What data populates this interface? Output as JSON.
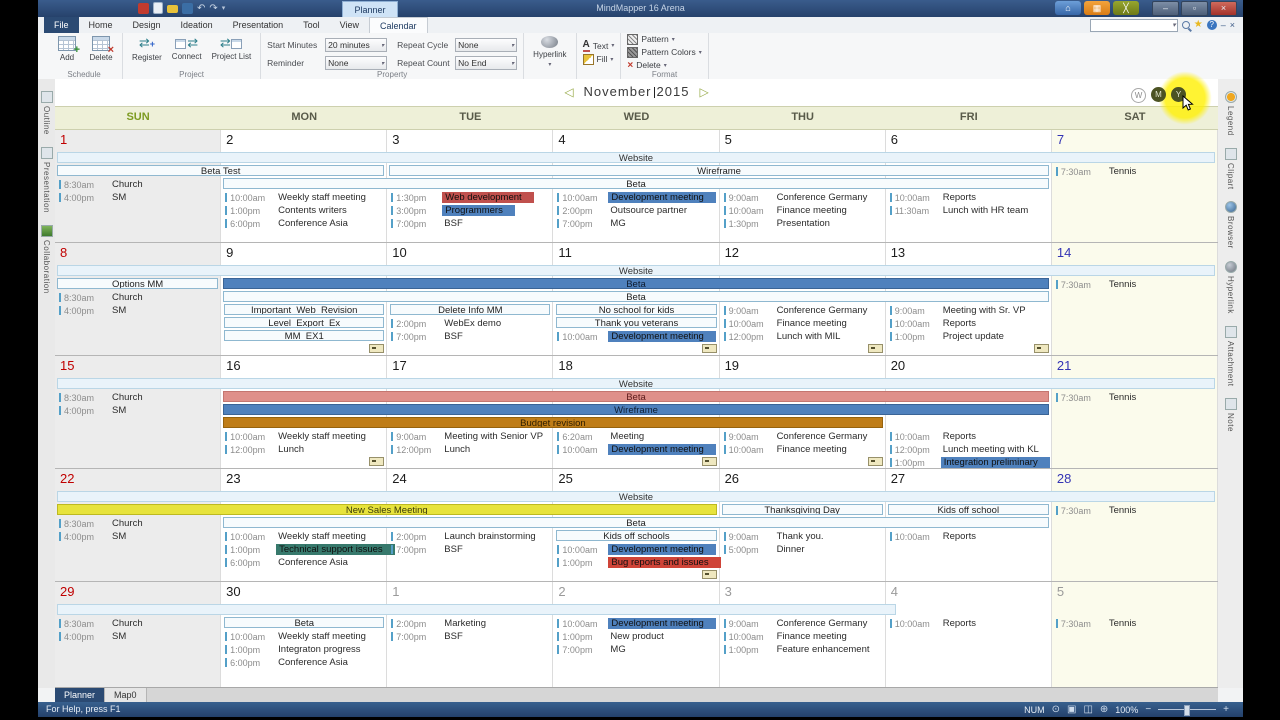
{
  "titlebar": {
    "title": "MindMapper 16 Arena",
    "context_tab": "Planner"
  },
  "ribbon": {
    "tabs": [
      "File",
      "Home",
      "Design",
      "Ideation",
      "Presentation",
      "Tool",
      "View",
      "Calendar"
    ],
    "active_tab": "Calendar",
    "schedule": {
      "label": "Schedule",
      "add": "Add",
      "delete": "Delete"
    },
    "project": {
      "label": "Project",
      "register": "Register",
      "connect": "Connect",
      "project_list": "Project List"
    },
    "property": {
      "label": "Property",
      "fields": [
        {
          "label": "Start Minutes",
          "value": "20 minutes"
        },
        {
          "label": "Reminder",
          "value": "None"
        },
        {
          "label": "Repeat Cycle",
          "value": "None"
        },
        {
          "label": "Repeat Count",
          "value": "No End"
        }
      ]
    },
    "hyperlink_label": "Hyperlink",
    "text_label": "Text",
    "fill_label": "Fill",
    "format": {
      "label": "Format",
      "pattern": "Pattern",
      "pattern_colors": "Pattern Colors",
      "delete": "Delete"
    }
  },
  "side_tabs": {
    "left": [
      "Outline",
      "Presentation",
      "Collaboration"
    ],
    "right": [
      "Legend",
      "Clipart",
      "Browser",
      "Hyperlink",
      "Attachment",
      "Note"
    ]
  },
  "calendar": {
    "month": "November",
    "year": "2015",
    "view_buttons": [
      "W",
      "M",
      "Y"
    ],
    "day_headers": [
      "SUN",
      "MON",
      "TUE",
      "WED",
      "THU",
      "FRI",
      "SAT"
    ],
    "weeks": [
      {
        "dates": [
          {
            "t": "1",
            "c": "red"
          },
          {
            "t": "2",
            "c": "wd"
          },
          {
            "t": "3",
            "c": "wd"
          },
          {
            "t": "4",
            "c": "wd"
          },
          {
            "t": "5",
            "c": "wd"
          },
          {
            "t": "6",
            "c": "wd"
          },
          {
            "t": "7",
            "c": "sat"
          }
        ],
        "day_start_rows": [
          2,
          3,
          3,
          3,
          3,
          3,
          1
        ],
        "banners": [
          {
            "label": "Website",
            "row": 0,
            "from": 0,
            "to": 7,
            "style": "band"
          },
          {
            "label": "Beta Test",
            "row": 1,
            "from": 0,
            "to": 2,
            "style": "light"
          },
          {
            "label": "Wireframe",
            "row": 1,
            "from": 2,
            "to": 6,
            "style": "light"
          },
          {
            "label": "Beta",
            "row": 2,
            "from": 1,
            "to": 6,
            "style": "light"
          }
        ],
        "days": [
          {
            "events": [
              {
                "time": "8:30am",
                "title": "Church"
              },
              {
                "time": "4:00pm",
                "title": "SM"
              }
            ]
          },
          {
            "events": [
              {
                "time": "10:00am",
                "title": "Weekly staff meeting"
              },
              {
                "time": "1:00pm",
                "title": "Contents writers"
              },
              {
                "time": "6:00pm",
                "title": "Conference Asia"
              }
            ]
          },
          {
            "events": [
              {
                "time": "1:30pm",
                "title": "Web development",
                "hl": "red"
              },
              {
                "time": "3:00pm",
                "title": "Programmers",
                "hl": "blue"
              },
              {
                "time": "7:00pm",
                "title": "BSF"
              }
            ]
          },
          {
            "events": [
              {
                "time": "10:00am",
                "title": "Development meeting",
                "hl": "blue"
              },
              {
                "time": "2:00pm",
                "title": "Outsource partner"
              },
              {
                "time": "7:00pm",
                "title": "MG"
              }
            ]
          },
          {
            "events": [
              {
                "time": "9:00am",
                "title": "Conference Germany"
              },
              {
                "time": "10:00am",
                "title": "Finance meeting"
              },
              {
                "time": "1:30pm",
                "title": "Presentation"
              }
            ]
          },
          {
            "events": [
              {
                "time": "10:00am",
                "title": "Reports"
              },
              {
                "time": "11:30am",
                "title": "Lunch with HR team"
              }
            ]
          },
          {
            "events": [
              {
                "time": "7:30am",
                "title": "Tennis"
              }
            ]
          }
        ]
      },
      {
        "dates": [
          {
            "t": "8",
            "c": "red"
          },
          {
            "t": "9",
            "c": "wd"
          },
          {
            "t": "10",
            "c": "wd"
          },
          {
            "t": "11",
            "c": "wd"
          },
          {
            "t": "12",
            "c": "wd"
          },
          {
            "t": "13",
            "c": "wd"
          },
          {
            "t": "14",
            "c": "sat"
          }
        ],
        "day_start_rows": [
          2,
          3,
          3,
          3,
          3,
          3,
          1
        ],
        "banners": [
          {
            "label": "Website",
            "row": 0,
            "from": 0,
            "to": 7,
            "style": "band"
          },
          {
            "label": "Options MM",
            "row": 1,
            "from": 0,
            "to": 1,
            "style": "light"
          },
          {
            "label": "Beta",
            "row": 1,
            "from": 1,
            "to": 6,
            "style": "blue"
          },
          {
            "label": "Beta",
            "row": 2,
            "from": 1,
            "to": 6,
            "style": "light"
          }
        ],
        "days": [
          {
            "events": [
              {
                "time": "8:30am",
                "title": "Church"
              },
              {
                "time": "4:00pm",
                "title": "SM"
              }
            ]
          },
          {
            "banners": [
              "Important_Web_Revision",
              "Level_Export_Ex",
              "MM_EX1"
            ],
            "more": true
          },
          {
            "banners": [
              "Delete Info MM"
            ],
            "events": [
              {
                "time": "2:00pm",
                "title": "WebEx demo"
              },
              {
                "time": "7:00pm",
                "title": "BSF"
              }
            ]
          },
          {
            "banners": [
              "No school for kids",
              "Thank you veterans"
            ],
            "events": [
              {
                "time": "10:00am",
                "title": "Development meeting",
                "hl": "blue"
              }
            ],
            "more": true
          },
          {
            "events": [
              {
                "time": "9:00am",
                "title": "Conference Germany"
              },
              {
                "time": "10:00am",
                "title": "Finance meeting"
              },
              {
                "time": "12:00pm",
                "title": "Lunch with MIL"
              }
            ],
            "more": true
          },
          {
            "events": [
              {
                "time": "9:00am",
                "title": "Meeting with Sr. VP"
              },
              {
                "time": "10:00am",
                "title": "Reports"
              },
              {
                "time": "1:00pm",
                "title": "Project update"
              }
            ],
            "more": true
          },
          {
            "events": [
              {
                "time": "7:30am",
                "title": "Tennis"
              }
            ]
          }
        ]
      },
      {
        "dates": [
          {
            "t": "15",
            "c": "red"
          },
          {
            "t": "16",
            "c": "wd"
          },
          {
            "t": "17",
            "c": "wd"
          },
          {
            "t": "18",
            "c": "wd"
          },
          {
            "t": "19",
            "c": "wd"
          },
          {
            "t": "20",
            "c": "wd"
          },
          {
            "t": "21",
            "c": "sat"
          }
        ],
        "day_start_rows": [
          1,
          4,
          4,
          4,
          4,
          4,
          1
        ],
        "banners": [
          {
            "label": "Website",
            "row": 0,
            "from": 0,
            "to": 7,
            "style": "band"
          },
          {
            "label": "Beta",
            "row": 1,
            "from": 1,
            "to": 6,
            "style": "salmon"
          },
          {
            "label": "Wireframe",
            "row": 2,
            "from": 1,
            "to": 6,
            "style": "blue"
          },
          {
            "label": "Budget revision",
            "row": 3,
            "from": 1,
            "to": 5,
            "style": "orange"
          }
        ],
        "days": [
          {
            "events": [
              {
                "time": "8:30am",
                "title": "Church"
              },
              {
                "time": "4:00pm",
                "title": "SM"
              }
            ]
          },
          {
            "events": [
              {
                "time": "10:00am",
                "title": "Weekly staff meeting"
              },
              {
                "time": "12:00pm",
                "title": "Lunch"
              }
            ],
            "more": true
          },
          {
            "events": [
              {
                "time": "9:00am",
                "title": "Meeting with Senior VP"
              },
              {
                "time": "12:00pm",
                "title": "Lunch"
              }
            ]
          },
          {
            "events": [
              {
                "time": "6:20am",
                "title": "Meeting"
              },
              {
                "time": "10:00am",
                "title": "Development meeting",
                "hl": "blue"
              }
            ],
            "more": true
          },
          {
            "events": [
              {
                "time": "9:00am",
                "title": "Conference Germany"
              },
              {
                "time": "10:00am",
                "title": "Finance meeting"
              }
            ],
            "more": true
          },
          {
            "events": [
              {
                "time": "10:00am",
                "title": "Reports"
              },
              {
                "time": "12:00pm",
                "title": "Lunch meeting with KL"
              },
              {
                "time": "1:00pm",
                "title": "Integration preliminary",
                "hl": "blue"
              }
            ],
            "more": true
          },
          {
            "events": [
              {
                "time": "7:30am",
                "title": "Tennis"
              }
            ]
          }
        ]
      },
      {
        "dates": [
          {
            "t": "22",
            "c": "red"
          },
          {
            "t": "23",
            "c": "wd"
          },
          {
            "t": "24",
            "c": "wd"
          },
          {
            "t": "25",
            "c": "wd"
          },
          {
            "t": "26",
            "c": "wd"
          },
          {
            "t": "27",
            "c": "wd"
          },
          {
            "t": "28",
            "c": "sat"
          }
        ],
        "day_start_rows": [
          2,
          3,
          3,
          3,
          3,
          3,
          1
        ],
        "banners": [
          {
            "label": "Website",
            "row": 0,
            "from": 0,
            "to": 7,
            "style": "band"
          },
          {
            "label": "New Sales Meeting",
            "row": 1,
            "from": 0,
            "to": 4,
            "style": "yellow"
          },
          {
            "label": "Thanksgiving Day",
            "row": 1,
            "from": 4,
            "to": 5,
            "style": "light"
          },
          {
            "label": "Kids off school",
            "row": 1,
            "from": 5,
            "to": 6,
            "style": "light"
          },
          {
            "label": "Beta",
            "row": 2,
            "from": 1,
            "to": 6,
            "style": "light"
          }
        ],
        "days": [
          {
            "events": [
              {
                "time": "8:30am",
                "title": "Church"
              },
              {
                "time": "4:00pm",
                "title": "SM"
              }
            ]
          },
          {
            "events": [
              {
                "time": "10:00am",
                "title": "Weekly staff meeting"
              },
              {
                "time": "1:00pm",
                "title": "Technical support issues",
                "hl": "teal"
              },
              {
                "time": "6:00pm",
                "title": "Conference Asia"
              }
            ]
          },
          {
            "events": [
              {
                "time": "2:00pm",
                "title": "Launch brainstorming"
              },
              {
                "time": "7:00pm",
                "title": "BSF"
              }
            ]
          },
          {
            "banners": [
              "Kids off schools"
            ],
            "events": [
              {
                "time": "10:00am",
                "title": "Development meeting",
                "hl": "blue"
              },
              {
                "time": "1:00pm",
                "title": "Bug reports and issues",
                "hl": "red2"
              }
            ],
            "more": true
          },
          {
            "events": [
              {
                "time": "9:00am",
                "title": "Thank you."
              },
              {
                "time": "5:00pm",
                "title": "Dinner"
              }
            ]
          },
          {
            "events": [
              {
                "time": "10:00am",
                "title": "Reports"
              }
            ]
          },
          {
            "events": [
              {
                "time": "7:30am",
                "title": "Tennis"
              }
            ]
          }
        ]
      },
      {
        "dates": [
          {
            "t": "29",
            "c": "red"
          },
          {
            "t": "30",
            "c": "wd"
          },
          {
            "t": "1",
            "c": "next"
          },
          {
            "t": "2",
            "c": "next"
          },
          {
            "t": "3",
            "c": "next"
          },
          {
            "t": "4",
            "c": "next"
          },
          {
            "t": "5",
            "c": "next"
          }
        ],
        "day_start_rows": [
          1,
          1,
          1,
          1,
          1,
          1,
          1
        ],
        "banners": [
          {
            "label": "Website",
            "row": 0,
            "from": 0,
            "to": 4,
            "style": "band",
            "off": 0.72
          }
        ],
        "days": [
          {
            "events": [
              {
                "time": "8:30am",
                "title": "Church"
              },
              {
                "time": "4:00pm",
                "title": "SM"
              }
            ]
          },
          {
            "banners": [
              "Beta"
            ],
            "events": [
              {
                "time": "10:00am",
                "title": "Weekly staff meeting"
              },
              {
                "time": "1:00pm",
                "title": "Integraton progress"
              },
              {
                "time": "6:00pm",
                "title": "Conference Asia"
              }
            ]
          },
          {
            "events": [
              {
                "time": "2:00pm",
                "title": "Marketing"
              },
              {
                "time": "7:00pm",
                "title": "BSF"
              }
            ]
          },
          {
            "events": [
              {
                "time": "10:00am",
                "title": "Development meeting",
                "hl": "blue"
              },
              {
                "time": "1:00pm",
                "title": "New product"
              },
              {
                "time": "7:00pm",
                "title": "MG"
              }
            ]
          },
          {
            "events": [
              {
                "time": "9:00am",
                "title": "Conference Germany"
              },
              {
                "time": "10:00am",
                "title": "Finance meeting"
              },
              {
                "time": "1:00pm",
                "title": "Feature enhancement"
              }
            ]
          },
          {
            "events": [
              {
                "time": "10:00am",
                "title": "Reports"
              }
            ]
          },
          {
            "events": [
              {
                "time": "7:30am",
                "title": "Tennis"
              }
            ]
          }
        ]
      }
    ]
  },
  "doc_tabs": [
    "Planner",
    "Map0"
  ],
  "status": {
    "help": "For Help, press F1",
    "num": "NUM",
    "zoom": "100%"
  },
  "icons": {
    "prev": "◁",
    "next": "▷"
  }
}
